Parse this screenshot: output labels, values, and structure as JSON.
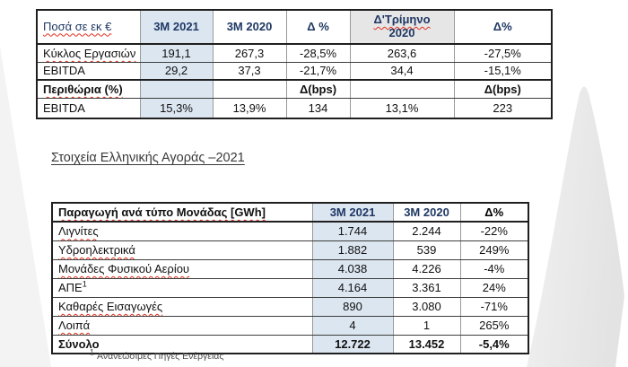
{
  "colors": {
    "header_navy": "#1f3864",
    "highlight_column_blue": "#dce6f1",
    "header_gray": "#e7e6e6",
    "spellcheck_red": "#e0301e",
    "mountain_gray": "#e7e7e7",
    "slope_gray": "#f3f3f3"
  },
  "table1": {
    "columns": [
      {
        "label": "Ποσά σε εκ €",
        "squiggle": true,
        "is_label": true
      },
      {
        "label": "3M 2021",
        "bg": "blue"
      },
      {
        "label": "3M 2020"
      },
      {
        "label": "Δ %"
      },
      {
        "label": "Δ'Τρίμηνο",
        "label2": "2020",
        "squiggle": true,
        "bg": "gray"
      },
      {
        "label": "Δ%"
      }
    ],
    "rows": [
      {
        "cells": [
          "Κύκλος Εργασιών",
          "191,1",
          "267,3",
          "-28,5%",
          "263,6",
          "-27,5%"
        ],
        "squiggle": true
      },
      {
        "cells": [
          "EBITDA",
          "29,2",
          "37,3",
          "-21,7%",
          "34,4",
          "-15,1%"
        ]
      },
      {
        "cells": [
          "Περιθώρια (%)",
          "",
          "",
          "Δ(bps)",
          "",
          "Δ(bps)"
        ],
        "bold": true,
        "thick_top": true,
        "squiggle": true
      },
      {
        "cells": [
          "EBITDA",
          "15,3%",
          "13,9%",
          "134",
          "13,1%",
          "223"
        ]
      }
    ]
  },
  "section": {
    "heading": "Στοιχεία Ελληνικής Αγοράς –2021"
  },
  "table2": {
    "label_header": "Παραγωγή ανά τύπο Μονάδας [GWh]",
    "columns": [
      "3M 2021",
      "3M 2020",
      "Δ%"
    ],
    "rows": [
      {
        "label": "Λιγνίτες",
        "values": [
          "1.744",
          "2.244",
          "-22%"
        ],
        "squiggle": true
      },
      {
        "label": "Υδροηλεκτρικά",
        "values": [
          "1.882",
          "539",
          "249%"
        ],
        "squiggle": true
      },
      {
        "label": "Μονάδες Φυσικού Αερίου",
        "values": [
          "4.038",
          "4.226",
          "-4%"
        ],
        "squiggle": true
      },
      {
        "label": "ΑΠΕ",
        "sup": "1",
        "values": [
          "4.164",
          "3.361",
          "24%"
        ]
      },
      {
        "label": "Καθαρές Εισαγωγές",
        "values": [
          "890",
          "3.080",
          "-71%"
        ],
        "squiggle": true
      },
      {
        "label": "Λοιπά",
        "values": [
          "4",
          "1",
          "265%"
        ],
        "squiggle": true
      },
      {
        "label": "Σύνολο",
        "values": [
          "12.722",
          "13.452",
          "-5,4%"
        ],
        "bold": true
      }
    ]
  },
  "footnote": {
    "sup": "1",
    "text": "Ανανεώσιμες Πηγές Ενέργειας"
  }
}
